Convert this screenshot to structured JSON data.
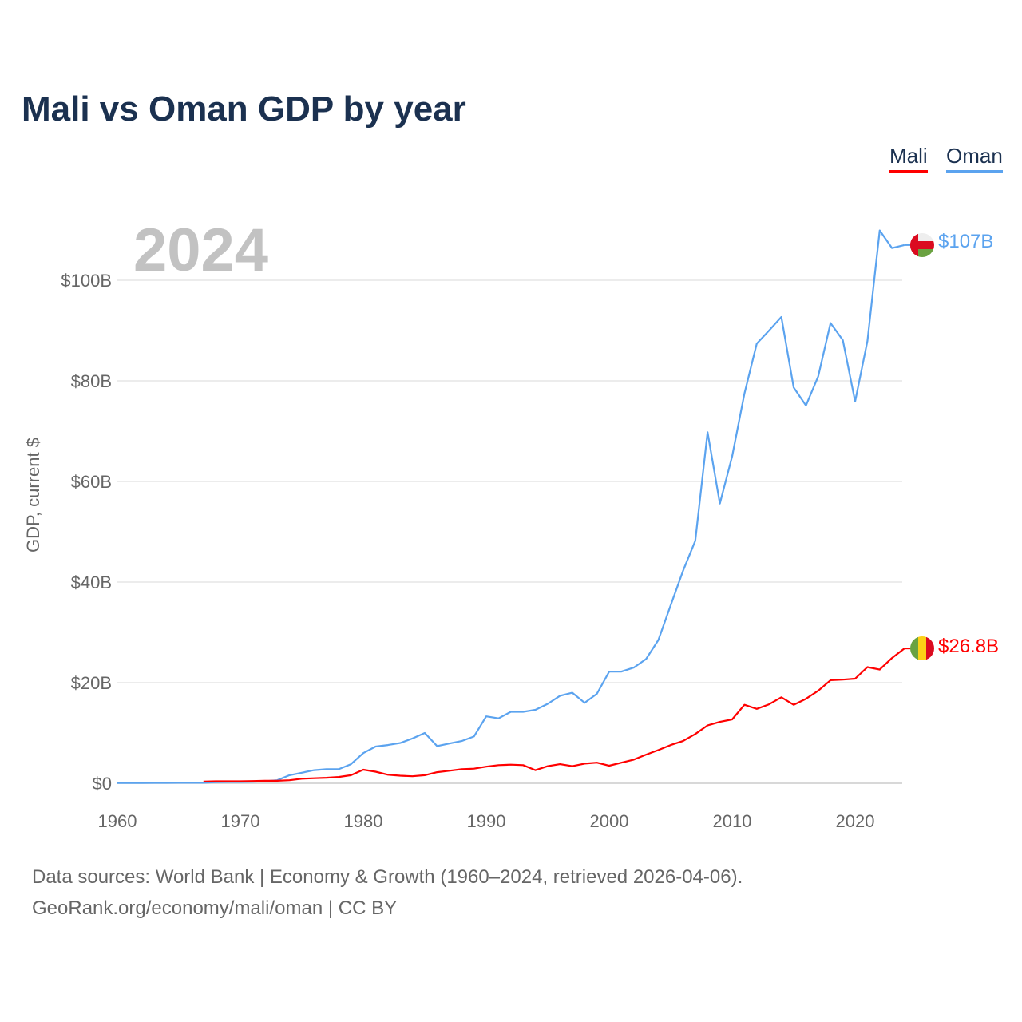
{
  "title": "Mali vs Oman GDP by year",
  "year_display": "2024",
  "legend": [
    {
      "label": "Mali",
      "color": "#ff0000"
    },
    {
      "label": "Oman",
      "color": "#5ba3ef"
    }
  ],
  "end_labels": {
    "oman": "$107B",
    "mali": "$26.8B"
  },
  "footer": {
    "line1": "Data sources: World Bank | Economy & Growth (1960–2024, retrieved 2026-04-06).",
    "line2": "GeoRank.org/economy/mali/oman | CC BY"
  },
  "chart_data": {
    "type": "line",
    "title": "Mali vs Oman GDP by year",
    "xlabel": "",
    "ylabel": "GDP, current $",
    "xlim": [
      1960,
      2024
    ],
    "ylim": [
      0,
      110
    ],
    "x_ticks": [
      1960,
      1970,
      1980,
      1990,
      2000,
      2010,
      2020
    ],
    "y_ticks": [
      {
        "v": 0,
        "label": "$0"
      },
      {
        "v": 20,
        "label": "$20B"
      },
      {
        "v": 40,
        "label": "$40B"
      },
      {
        "v": 60,
        "label": "$60B"
      },
      {
        "v": 80,
        "label": "$80B"
      },
      {
        "v": 100,
        "label": "$100B"
      }
    ],
    "grid": true,
    "legend_position": "top-right",
    "series": [
      {
        "name": "Oman",
        "color": "#5ba3ef",
        "start_year": 1960,
        "values": [
          0.05,
          0.06,
          0.07,
          0.08,
          0.08,
          0.09,
          0.09,
          0.1,
          0.2,
          0.25,
          0.26,
          0.3,
          0.4,
          0.6,
          1.6,
          2.1,
          2.6,
          2.8,
          2.8,
          3.8,
          6.0,
          7.3,
          7.6,
          8.0,
          8.9,
          10.0,
          7.4,
          7.9,
          8.4,
          9.3,
          13.3,
          12.9,
          14.2,
          14.2,
          14.6,
          15.8,
          17.4,
          18.0,
          16.0,
          17.8,
          22.2,
          22.2,
          23.0,
          24.7,
          28.5,
          35.4,
          42.2,
          48.2,
          69.8,
          55.6,
          65.0,
          77.5,
          87.4,
          90.0,
          92.7,
          78.7,
          75.1,
          80.9,
          91.5,
          88.1,
          75.9,
          87.9,
          109.9,
          106.4,
          107.0
        ]
      },
      {
        "name": "Mali",
        "color": "#ff0000",
        "start_year": 1967,
        "values": [
          0.35,
          0.4,
          0.4,
          0.4,
          0.45,
          0.5,
          0.5,
          0.6,
          0.9,
          1.0,
          1.1,
          1.25,
          1.6,
          2.7,
          2.3,
          1.7,
          1.5,
          1.4,
          1.6,
          2.2,
          2.5,
          2.8,
          2.9,
          3.3,
          3.6,
          3.7,
          3.6,
          2.6,
          3.4,
          3.8,
          3.4,
          3.9,
          4.1,
          3.5,
          4.1,
          4.7,
          5.7,
          6.6,
          7.6,
          8.4,
          9.8,
          11.5,
          12.2,
          12.7,
          15.6,
          14.8,
          15.7,
          17.1,
          15.6,
          16.8,
          18.4,
          20.5,
          20.6,
          20.8,
          23.1,
          22.6,
          24.9,
          26.8
        ]
      }
    ]
  }
}
